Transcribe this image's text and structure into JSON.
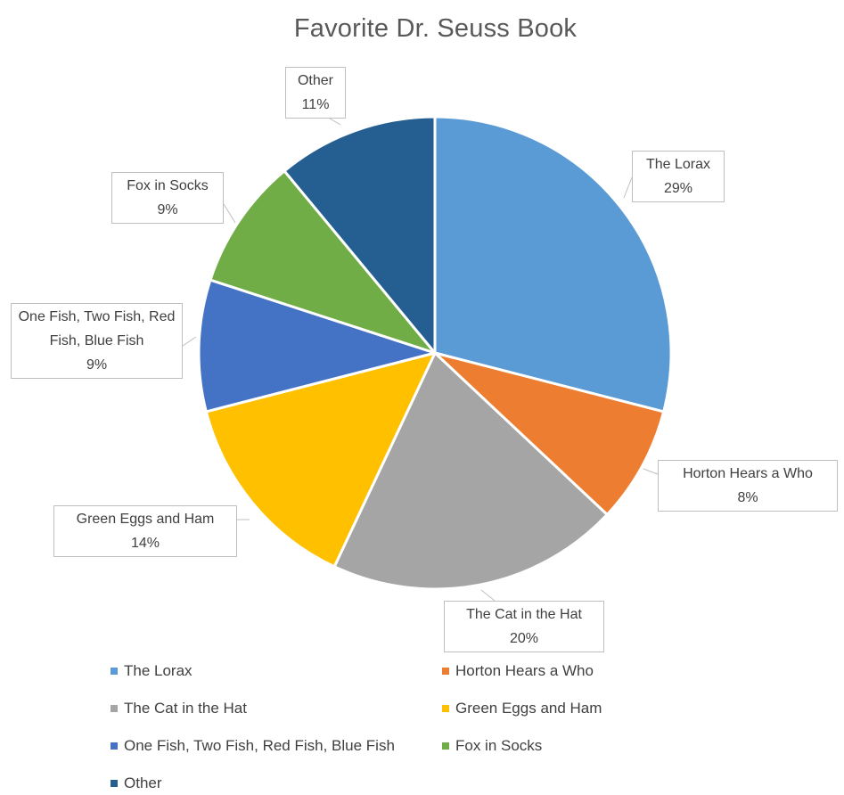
{
  "chart_data": {
    "type": "pie",
    "title": "Favorite Dr. Seuss Book",
    "slices": [
      {
        "label": "The Lorax",
        "value": 29,
        "value_label": "29%",
        "color": "#5B9BD5"
      },
      {
        "label": "Horton Hears a Who",
        "value": 8,
        "value_label": "8%",
        "color": "#ED7D31"
      },
      {
        "label": "The Cat in the Hat",
        "value": 20,
        "value_label": "20%",
        "color": "#A5A5A5"
      },
      {
        "label": "Green Eggs and Ham",
        "value": 14,
        "value_label": "14%",
        "color": "#FFC000"
      },
      {
        "label": "One Fish, Two Fish, Red Fish, Blue Fish",
        "value": 9,
        "value_label": "9%",
        "color": "#4472C4"
      },
      {
        "label": "Fox in Socks",
        "value": 9,
        "value_label": "9%",
        "color": "#70AD47"
      },
      {
        "label": "Other",
        "value": 11,
        "value_label": "11%",
        "color": "#255E91"
      }
    ],
    "legend_position": "bottom"
  }
}
